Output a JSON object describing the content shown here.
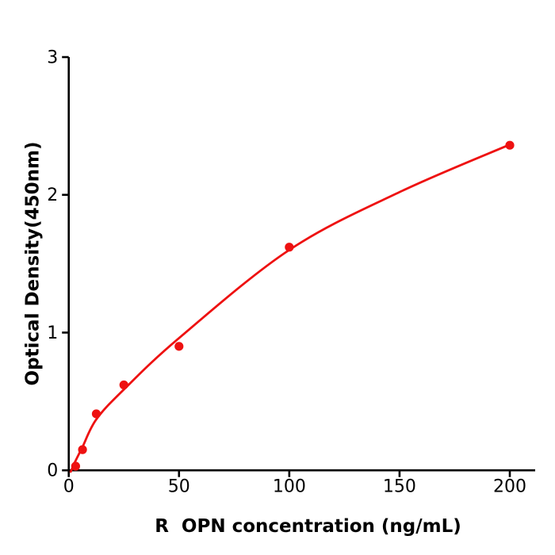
{
  "figure": {
    "background_color": "#ffffff"
  },
  "chart_data": {
    "type": "scatter",
    "title": "",
    "xlabel": "R  OPN concentration (ng/mL)",
    "ylabel": "Optical Density(450nm)",
    "x_ticks": [
      0,
      50,
      100,
      150,
      200
    ],
    "y_ticks": [
      0,
      1,
      2,
      3
    ],
    "xlim": [
      0,
      211.5
    ],
    "ylim": [
      0,
      3
    ],
    "grid": false,
    "legend": null,
    "axis_color": "#000000",
    "marker_color": "#ee1111",
    "line_color": "#ee1111",
    "points": {
      "x": [
        3.125,
        6.25,
        12.5,
        25,
        50,
        100,
        200
      ],
      "od": [
        0.03,
        0.15,
        0.41,
        0.62,
        0.9,
        1.62,
        2.36
      ]
    },
    "fit_curve_anchors": [
      [
        0.9,
        -0.01
      ],
      [
        3.125,
        0.07
      ],
      [
        6.25,
        0.17
      ],
      [
        12.5,
        0.37
      ],
      [
        25,
        0.587
      ],
      [
        50,
        0.96
      ],
      [
        100,
        1.6
      ],
      [
        150,
        2.02
      ],
      [
        200,
        2.365
      ]
    ]
  }
}
